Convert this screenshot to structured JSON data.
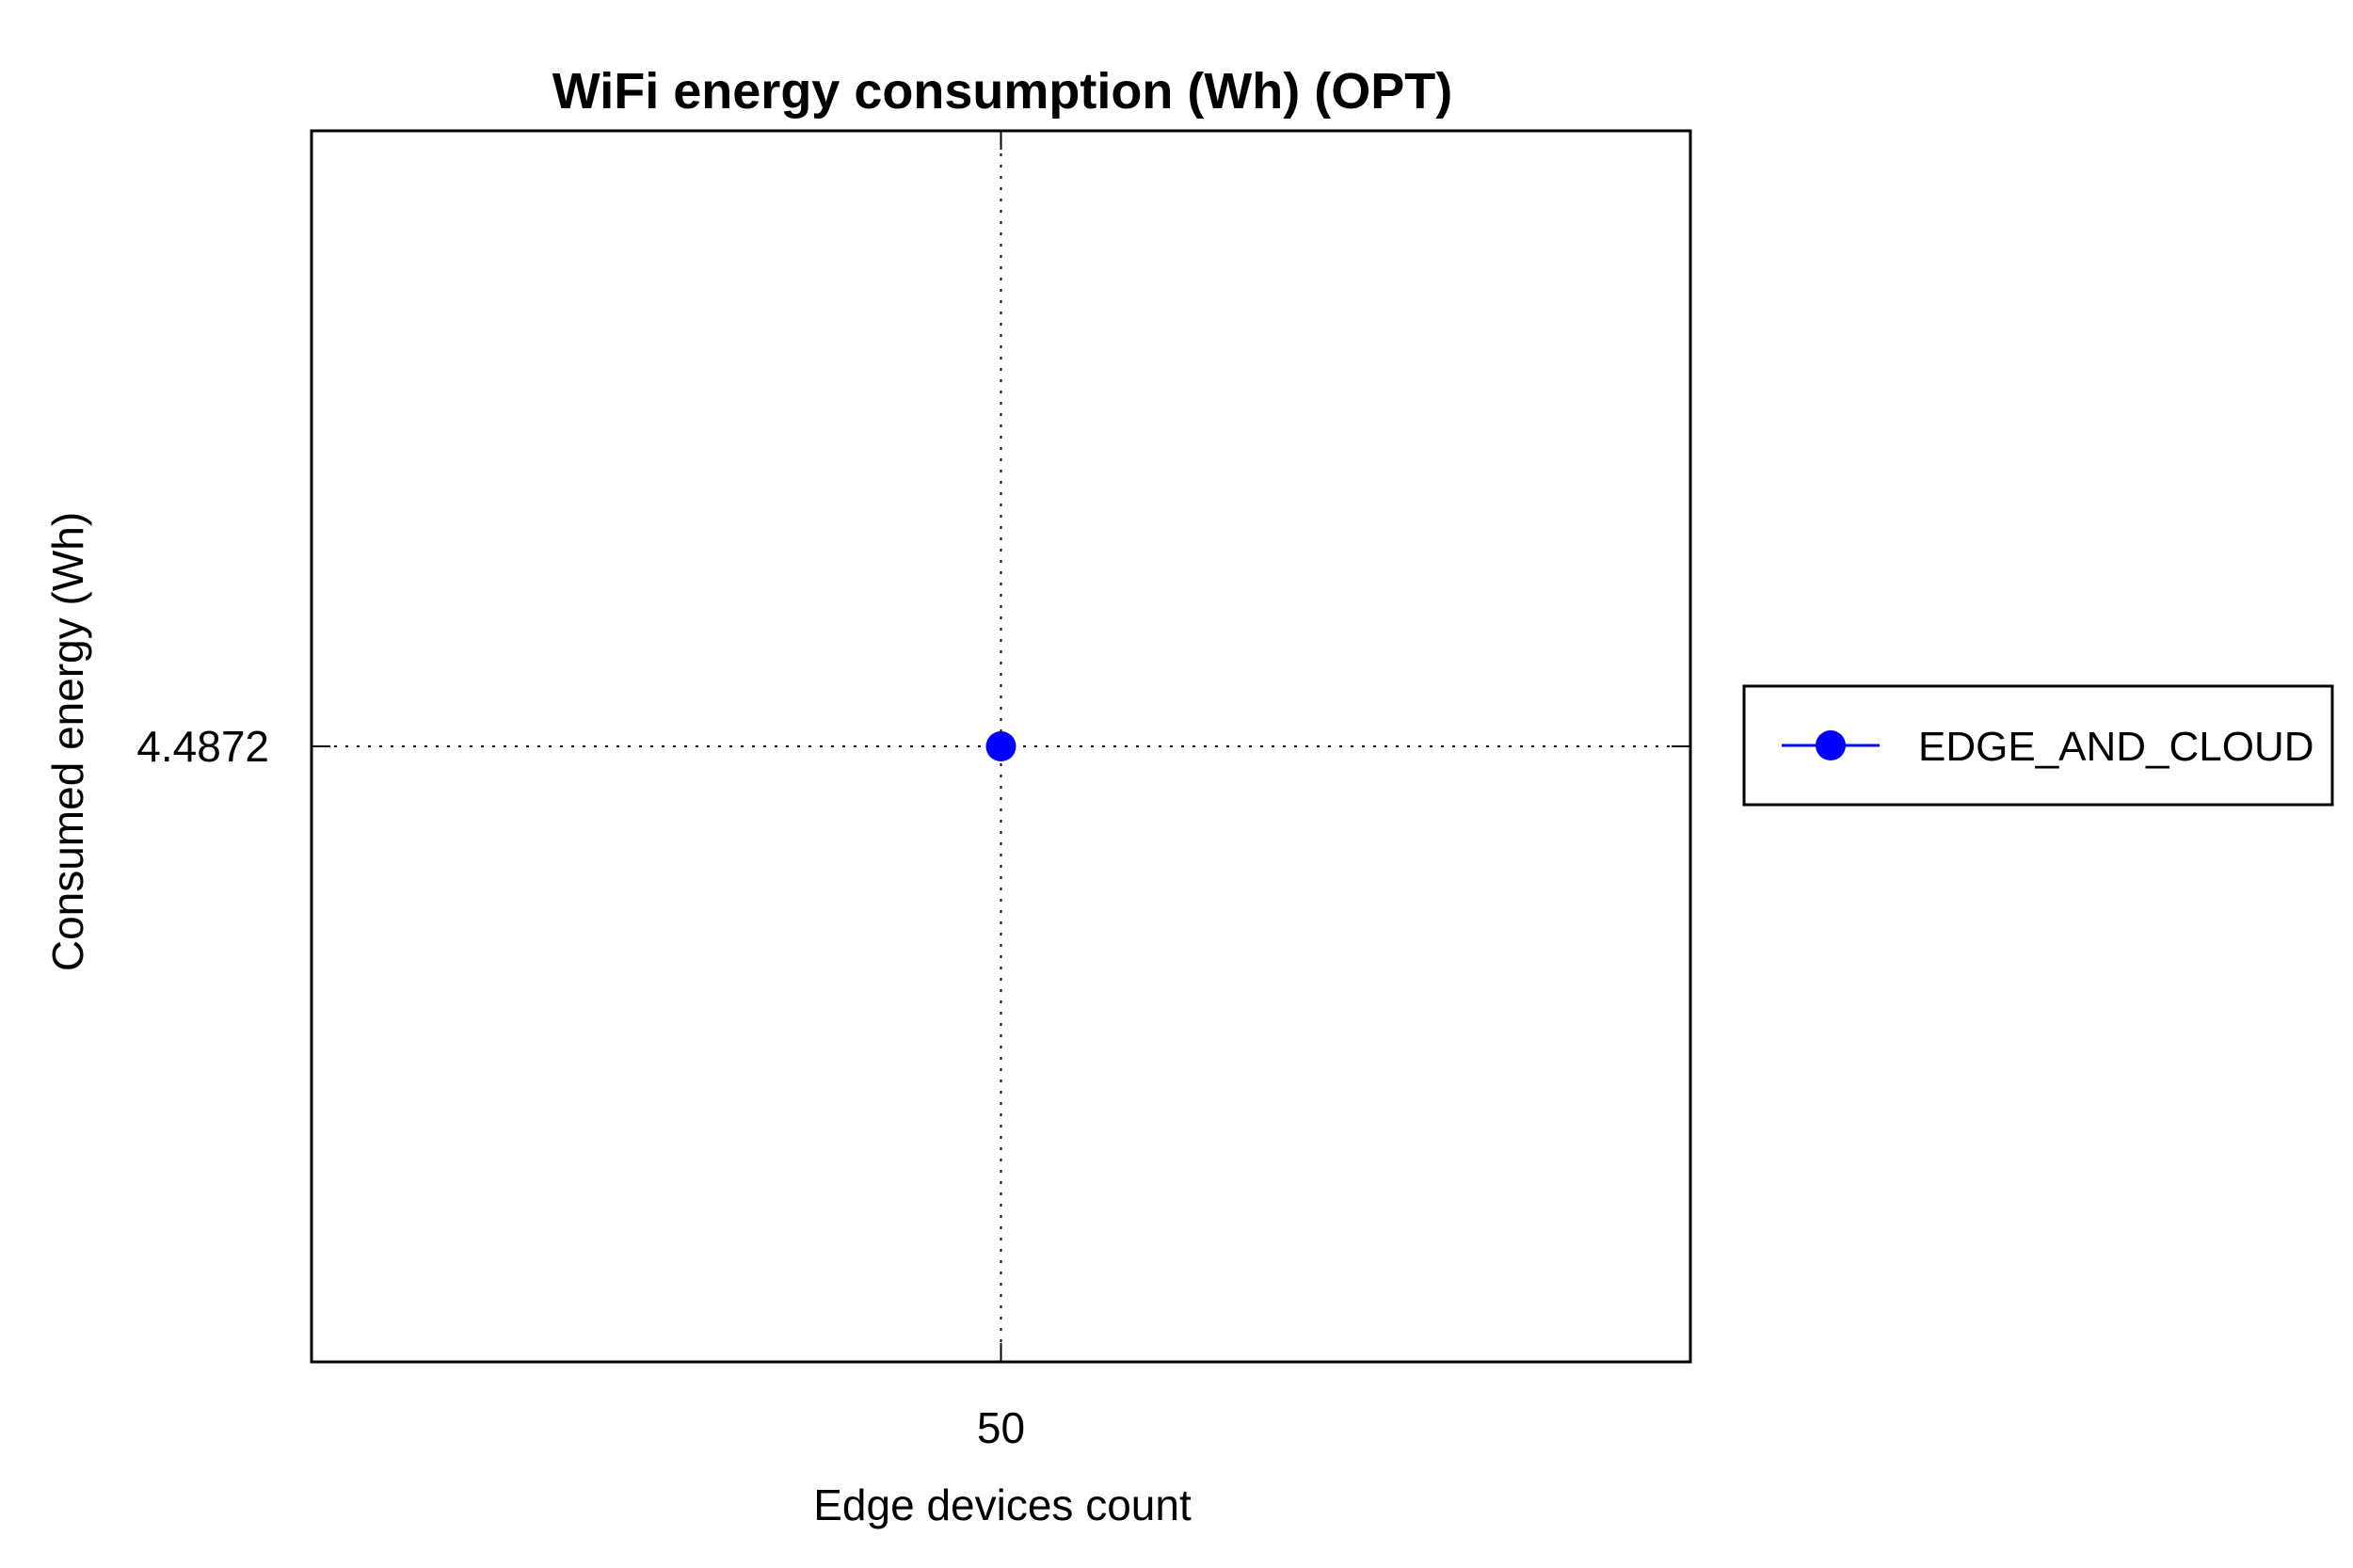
{
  "chart_data": {
    "type": "line",
    "title": "WiFi energy consumption (Wh) (OPT)",
    "xlabel": "Edge devices count",
    "ylabel": "Consumed energy (Wh)",
    "x_ticks": [
      "50"
    ],
    "y_ticks": [
      "4.4872"
    ],
    "xlim": [
      49,
      51
    ],
    "ylim": [
      4.4372,
      4.5372
    ],
    "grid": true,
    "legend_position": "right",
    "series": [
      {
        "name": "EDGE_AND_CLOUD",
        "color": "#0000ff",
        "marker": "circle",
        "x": [
          50
        ],
        "y": [
          4.4872
        ]
      }
    ]
  }
}
